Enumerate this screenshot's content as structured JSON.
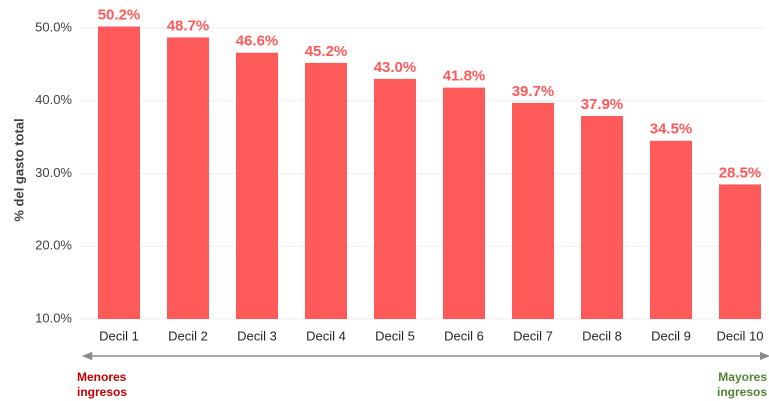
{
  "chart_data": {
    "type": "bar",
    "y_label": "% del gasto total",
    "categories": [
      "Decil 1",
      "Decil 2",
      "Decil 3",
      "Decil 4",
      "Decil 5",
      "Decil 6",
      "Decil 7",
      "Decil 8",
      "Decil 9",
      "Decil 10"
    ],
    "values": [
      50.2,
      48.7,
      46.6,
      45.2,
      43.0,
      41.8,
      39.7,
      37.9,
      34.5,
      28.5
    ],
    "value_labels": [
      "50.2%",
      "48.7%",
      "46.6%",
      "45.2%",
      "43.0%",
      "41.8%",
      "39.7%",
      "37.9%",
      "34.5%",
      "28.5%"
    ],
    "color": "#ff5a5a",
    "ylim": [
      10,
      51
    ],
    "yticks": [
      {
        "value": 10,
        "label": "10.0%"
      },
      {
        "value": 20,
        "label": "20.0%"
      },
      {
        "value": 30,
        "label": "30.0%"
      },
      {
        "value": 40,
        "label": "40.0%"
      },
      {
        "value": 50,
        "label": "50.0%"
      }
    ],
    "grid": true,
    "annotations": [
      {
        "lines": [
          "Menores",
          "ingresos"
        ],
        "color": "#c00000"
      },
      {
        "lines": [
          "Mayores",
          "ingresos"
        ],
        "color": "#548235"
      }
    ]
  }
}
